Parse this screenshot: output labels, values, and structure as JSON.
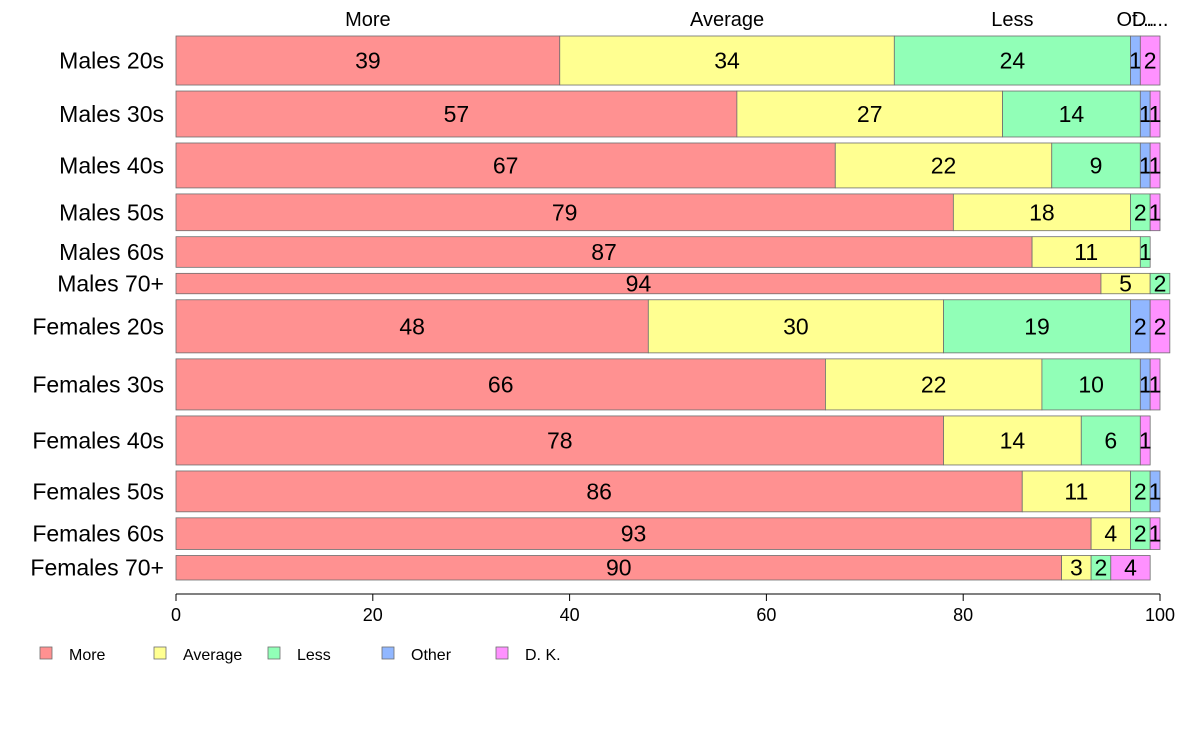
{
  "chart_data": {
    "type": "bar",
    "orientation": "horizontal",
    "stacked": true,
    "percent": true,
    "xlim": [
      0,
      100
    ],
    "x_ticks": [
      0,
      20,
      40,
      60,
      80,
      100
    ],
    "categories": [
      "Males 20s",
      "Males 30s",
      "Males 40s",
      "Males 50s",
      "Males 60s",
      "Males 70+",
      "Females 20s",
      "Females 30s",
      "Females 40s",
      "Females 50s",
      "Females 60s",
      "Females 70+"
    ],
    "row_weights": [
      48,
      45,
      44,
      36,
      30,
      20,
      52,
      50,
      48,
      40,
      31,
      24
    ],
    "top_labels": [
      "More",
      "Average",
      "Less",
      "Ot...",
      "D...."
    ],
    "legend_position": "bottom-left",
    "series": [
      {
        "name": "More",
        "color": "#ff9191",
        "values": [
          39,
          57,
          67,
          79,
          87,
          94,
          48,
          66,
          78,
          86,
          93,
          90
        ]
      },
      {
        "name": "Average",
        "color": "#ffff91",
        "values": [
          34,
          27,
          22,
          18,
          11,
          5,
          30,
          22,
          14,
          11,
          4,
          3
        ]
      },
      {
        "name": "Less",
        "color": "#91ffb7",
        "values": [
          24,
          14,
          9,
          2,
          1,
          2,
          19,
          10,
          6,
          2,
          2,
          2
        ]
      },
      {
        "name": "Other",
        "color": "#91b7ff",
        "values": [
          1,
          1,
          1,
          0,
          0,
          0,
          2,
          1,
          0,
          1,
          0,
          0
        ]
      },
      {
        "name": "D. K.",
        "color": "#ff91ff",
        "values": [
          2,
          1,
          1,
          1,
          0,
          0,
          2,
          1,
          1,
          0,
          1,
          4
        ]
      }
    ]
  }
}
